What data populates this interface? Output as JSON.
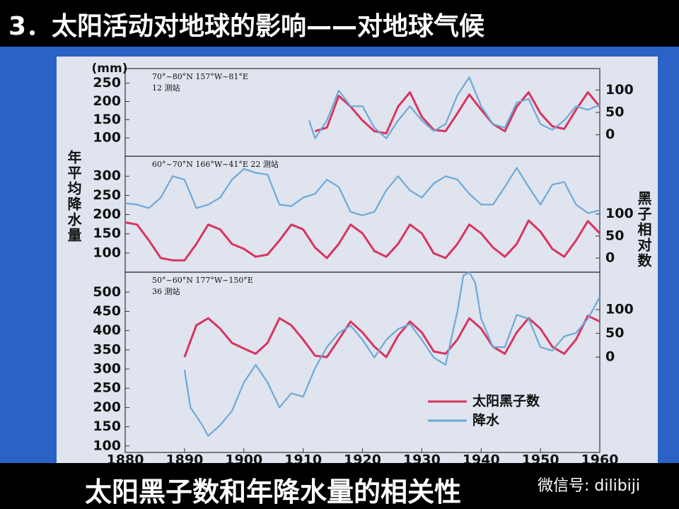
{
  "title": "3．太阳活动对地球的影响——对地球气候",
  "caption": "太阳黑子数和年降水量的相关性",
  "watermark": "微信号: dilibiji",
  "chart_data": [
    {
      "type": "line",
      "y_unit": "(mm)",
      "note": [
        "70°~80°N 157°W~81°E",
        "12 测站"
      ],
      "xlim": [
        1880,
        1960
      ],
      "ylim": [
        50,
        290
      ],
      "yticks": [
        100,
        150,
        200,
        250
      ],
      "y2lim": [
        -48,
        148
      ],
      "y2ticks": [
        0,
        50,
        100
      ],
      "series": [
        {
          "color": "#d8345f",
          "axis": "y2",
          "x": [
            1912,
            1914,
            1916,
            1918,
            1920,
            1922,
            1924,
            1926,
            1928,
            1930,
            1932,
            1934,
            1936,
            1938,
            1940,
            1942,
            1944,
            1946,
            1948,
            1950,
            1952,
            1954,
            1956,
            1958,
            1960
          ],
          "values": [
            8,
            16,
            87,
            63,
            32,
            8,
            3,
            63,
            95,
            40,
            11,
            8,
            48,
            90,
            56,
            24,
            8,
            63,
            95,
            48,
            19,
            13,
            56,
            95,
            63
          ]
        },
        {
          "color": "#6fa8d8",
          "x": [
            1911,
            1912,
            1914,
            1916,
            1918,
            1920,
            1922,
            1924,
            1926,
            1928,
            1930,
            1932,
            1934,
            1936,
            1938,
            1940,
            1942,
            1944,
            1946,
            1948,
            1950,
            1952,
            1954,
            1956,
            1958,
            1960
          ],
          "values": [
            148,
            99,
            148,
            230,
            187,
            187,
            128,
            99,
            148,
            187,
            148,
            119,
            138,
            217,
            266,
            187,
            138,
            128,
            197,
            207,
            138,
            122,
            148,
            187,
            177,
            191
          ]
        }
      ]
    },
    {
      "type": "line",
      "y_label": "年平均降水量",
      "y2_label": "黑子相对数",
      "note": [
        "60°~70°N 166°W~41°E 22 测站"
      ],
      "xlim": [
        1880,
        1960
      ],
      "ylim": [
        50,
        352
      ],
      "yticks": [
        100,
        150,
        200,
        250,
        300
      ],
      "y2lim": [
        -32,
        231
      ],
      "y2ticks": [
        0,
        50,
        100
      ],
      "series": [
        {
          "color": "#d8345f",
          "axis": "y2",
          "x": [
            1880,
            1882,
            1884,
            1886,
            1888,
            1890,
            1892,
            1894,
            1896,
            1898,
            1900,
            1902,
            1904,
            1906,
            1908,
            1910,
            1912,
            1914,
            1916,
            1918,
            1920,
            1922,
            1924,
            1926,
            1928,
            1930,
            1932,
            1934,
            1936,
            1938,
            1940,
            1942,
            1944,
            1946,
            1948,
            1950,
            1952,
            1954,
            1956,
            1958,
            1960
          ],
          "values": [
            81,
            76,
            40,
            0,
            -5,
            -5,
            32,
            76,
            65,
            32,
            21,
            3,
            8,
            40,
            76,
            65,
            24,
            0,
            32,
            76,
            56,
            16,
            3,
            32,
            76,
            56,
            11,
            0,
            32,
            76,
            56,
            24,
            3,
            32,
            85,
            60,
            21,
            3,
            40,
            84,
            56
          ]
        },
        {
          "color": "#6fa8d8",
          "x": [
            1880,
            1882,
            1884,
            1886,
            1888,
            1890,
            1892,
            1894,
            1896,
            1898,
            1900,
            1902,
            1904,
            1906,
            1908,
            1910,
            1912,
            1914,
            1916,
            1918,
            1920,
            1922,
            1924,
            1926,
            1928,
            1930,
            1932,
            1934,
            1936,
            1938,
            1940,
            1942,
            1944,
            1946,
            1948,
            1950,
            1952,
            1954,
            1956,
            1958,
            1960
          ],
          "values": [
            230,
            226,
            217,
            244,
            300,
            291,
            217,
            226,
            244,
            291,
            319,
            309,
            304,
            226,
            222,
            244,
            254,
            291,
            272,
            207,
            198,
            207,
            263,
            300,
            263,
            244,
            281,
            300,
            291,
            254,
            226,
            226,
            272,
            322,
            272,
            226,
            278,
            285,
            226,
            204,
            211
          ]
        }
      ]
    },
    {
      "type": "line",
      "note": [
        "50°~60°N 177°W~150°E",
        "36 测站"
      ],
      "xlim": [
        1880,
        1960
      ],
      "xticks": [
        1880,
        1890,
        1900,
        1910,
        1920,
        1930,
        1940,
        1950,
        1960
      ],
      "ylim": [
        83,
        552
      ],
      "yticks": [
        100,
        150,
        200,
        250,
        300,
        350,
        400,
        450,
        500
      ],
      "y2lim": [
        -201,
        179
      ],
      "y2ticks": [
        0,
        50,
        100
      ],
      "legend": "lower right",
      "series": [
        {
          "name": "太阳黑子数",
          "color": "#d8345f",
          "axis": "y2",
          "x": [
            1890,
            1892,
            1894,
            1896,
            1898,
            1900,
            1902,
            1904,
            1906,
            1908,
            1910,
            1912,
            1914,
            1916,
            1918,
            1920,
            1922,
            1924,
            1926,
            1928,
            1930,
            1932,
            1934,
            1936,
            1938,
            1940,
            1942,
            1944,
            1946,
            1948,
            1950,
            1952,
            1954,
            1956,
            1958,
            1960
          ],
          "values": [
            0,
            67,
            82,
            60,
            30,
            18,
            7,
            30,
            82,
            67,
            37,
            3,
            0,
            37,
            75,
            52,
            22,
            0,
            45,
            75,
            52,
            12,
            7,
            37,
            82,
            60,
            22,
            7,
            52,
            82,
            60,
            22,
            7,
            37,
            87,
            75
          ]
        },
        {
          "name": "降水",
          "color": "#6fa8d8",
          "x": [
            1890,
            1891,
            1893,
            1894,
            1896,
            1898,
            1900,
            1902,
            1904,
            1906,
            1908,
            1910,
            1912,
            1914,
            1916,
            1918,
            1920,
            1922,
            1924,
            1926,
            1928,
            1930,
            1932,
            1934,
            1936,
            1937,
            1938,
            1939,
            1940,
            1942,
            1944,
            1946,
            1948,
            1950,
            1952,
            1954,
            1956,
            1958,
            1960
          ],
          "values": [
            298,
            200,
            154,
            126,
            154,
            191,
            265,
            311,
            265,
            200,
            237,
            228,
            302,
            357,
            394,
            413,
            376,
            330,
            376,
            404,
            417,
            376,
            330,
            311,
            450,
            543,
            552,
            524,
            431,
            357,
            357,
            441,
            431,
            357,
            348,
            385,
            394,
            431,
            487
          ]
        }
      ]
    }
  ]
}
